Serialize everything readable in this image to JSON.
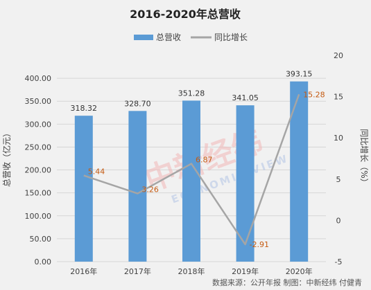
{
  "chart_data": {
    "type": "bar",
    "title": "2016-2020年总营收",
    "categories": [
      "2016年",
      "2017年",
      "2018年",
      "2019年",
      "2020年"
    ],
    "series": [
      {
        "name": "总营收",
        "type": "bar",
        "axis": "left",
        "color": "#5b9bd5",
        "values": [
          318.32,
          328.7,
          351.28,
          341.05,
          393.15
        ],
        "labels": [
          "318.32",
          "328.70",
          "351.28",
          "341.05",
          "393.15"
        ]
      },
      {
        "name": "同比增长",
        "type": "line",
        "axis": "right",
        "color": "#a5a5a5",
        "values": [
          5.44,
          3.26,
          6.87,
          -2.91,
          15.28
        ],
        "labels": [
          "5.44",
          "3.26",
          "6.87",
          "-2.91",
          "15.28"
        ]
      }
    ],
    "ylabel": "总营收（亿元）",
    "y2label": "同比增长（%）",
    "ylim": [
      0,
      450
    ],
    "y2lim": [
      -5,
      20
    ],
    "yticks": [
      "0.00",
      "50.00",
      "100.00",
      "150.00",
      "200.00",
      "250.00",
      "300.00",
      "350.00",
      "400.00"
    ],
    "y2ticks": [
      "-5",
      "0",
      "5",
      "10",
      "15",
      "20"
    ],
    "grid": true,
    "legend": "top-center",
    "source_note": "数据来源：公开年报  制图：中新经纬 付健青",
    "watermark": {
      "chinese": "中新经纬",
      "english": "ECONOMIC VIEW"
    }
  }
}
